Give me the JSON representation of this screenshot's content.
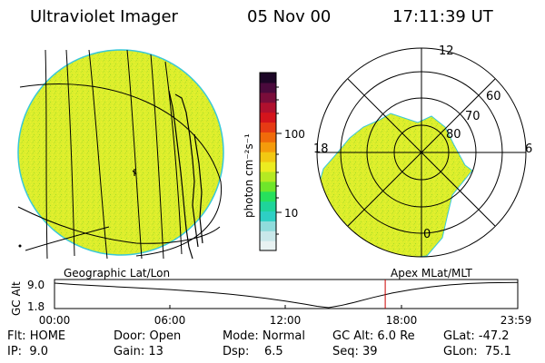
{
  "header": {
    "instrument": "Ultraviolet Imager",
    "date": "05 Nov 00",
    "time": "17:11:39 UT"
  },
  "geo_panel": {
    "label": "Geographic Lat/Lon"
  },
  "polar_panel": {
    "label": "Apex MLat/MLT",
    "mlt_labels": [
      "12",
      "18",
      "6",
      "0"
    ],
    "lat_labels": [
      "60",
      "70",
      "80"
    ]
  },
  "colorbar": {
    "unit_label": "photon cm⁻²s⁻¹",
    "tick_labels": [
      "100",
      "10"
    ],
    "colors": [
      "#e8f2f2",
      "#c9e8ea",
      "#8fdcdc",
      "#2ecfc4",
      "#1fd49a",
      "#27e05c",
      "#6fe62a",
      "#b5ea22",
      "#ecec20",
      "#f2c812",
      "#f59b0b",
      "#f06a0a",
      "#e63a14",
      "#d4141c",
      "#b0102e",
      "#7a0d3a",
      "#4a0a3c",
      "#1c0626"
    ]
  },
  "altitude_plot": {
    "y_axis_label": "GC Alt",
    "y_ticks": [
      "9.0",
      "1.8"
    ],
    "x_ticks": [
      "00:00",
      "06:00",
      "12:00",
      "18:00",
      "23:59"
    ],
    "current_time_fraction": 0.714,
    "altitude_series": [
      [
        0.0,
        9.0
      ],
      [
        1.0,
        8.6
      ],
      [
        2.0,
        8.3
      ],
      [
        3.0,
        8.0
      ],
      [
        4.0,
        7.7
      ],
      [
        5.0,
        7.4
      ],
      [
        6.0,
        7.1
      ],
      [
        7.0,
        6.7
      ],
      [
        8.0,
        6.3
      ],
      [
        9.0,
        5.8
      ],
      [
        10.0,
        5.2
      ],
      [
        11.0,
        4.5
      ],
      [
        12.0,
        3.7
      ],
      [
        13.0,
        2.8
      ],
      [
        13.6,
        2.2
      ],
      [
        14.2,
        1.8
      ],
      [
        14.8,
        2.4
      ],
      [
        15.5,
        3.3
      ],
      [
        16.5,
        4.8
      ],
      [
        17.5,
        6.1
      ],
      [
        18.5,
        7.1
      ],
      [
        19.5,
        7.9
      ],
      [
        20.5,
        8.5
      ],
      [
        21.5,
        8.9
      ],
      [
        22.5,
        9.1
      ],
      [
        23.98,
        9.2
      ]
    ]
  },
  "status": {
    "rows": [
      [
        "Flt: HOME",
        "Door: Open",
        "Mode: Normal",
        "GC Alt: 6.0 Re",
        "GLat: -47.2"
      ],
      [
        "IP:  9.0",
        "Gain: 13",
        "Dsp:    6.5",
        "Seq: 39",
        "GLon:  75.1"
      ]
    ]
  }
}
